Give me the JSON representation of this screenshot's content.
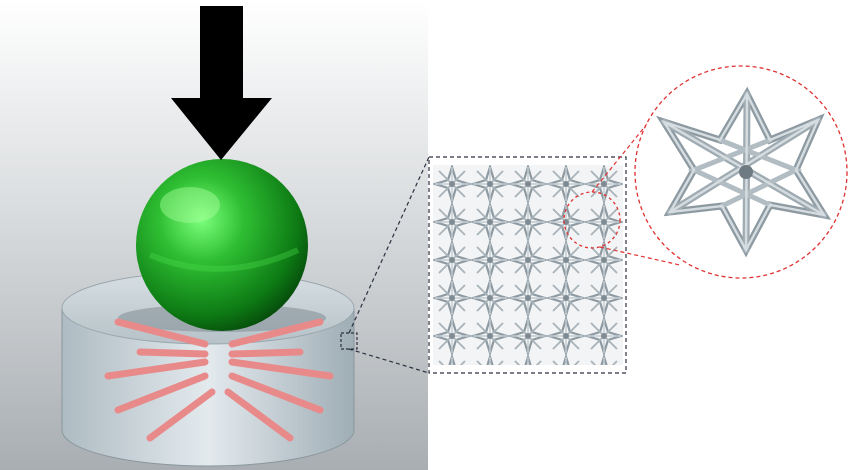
{
  "figure": {
    "panel_background": "#bfc3c6",
    "colors": {
      "arrow": "#000000",
      "indenter_sphere": "#22a52a",
      "specimen_cylinder": "#c9d3d8",
      "stress_arrows": "#e98a8a",
      "lattice": "#b9c4cb",
      "callout_box": "#2c3140",
      "callout_circle": "#e03030"
    },
    "icons": [
      "load-arrow-icon",
      "indenter-sphere-icon",
      "specimen-cylinder-icon",
      "lattice-block-icon",
      "unit-cell-icon"
    ]
  }
}
